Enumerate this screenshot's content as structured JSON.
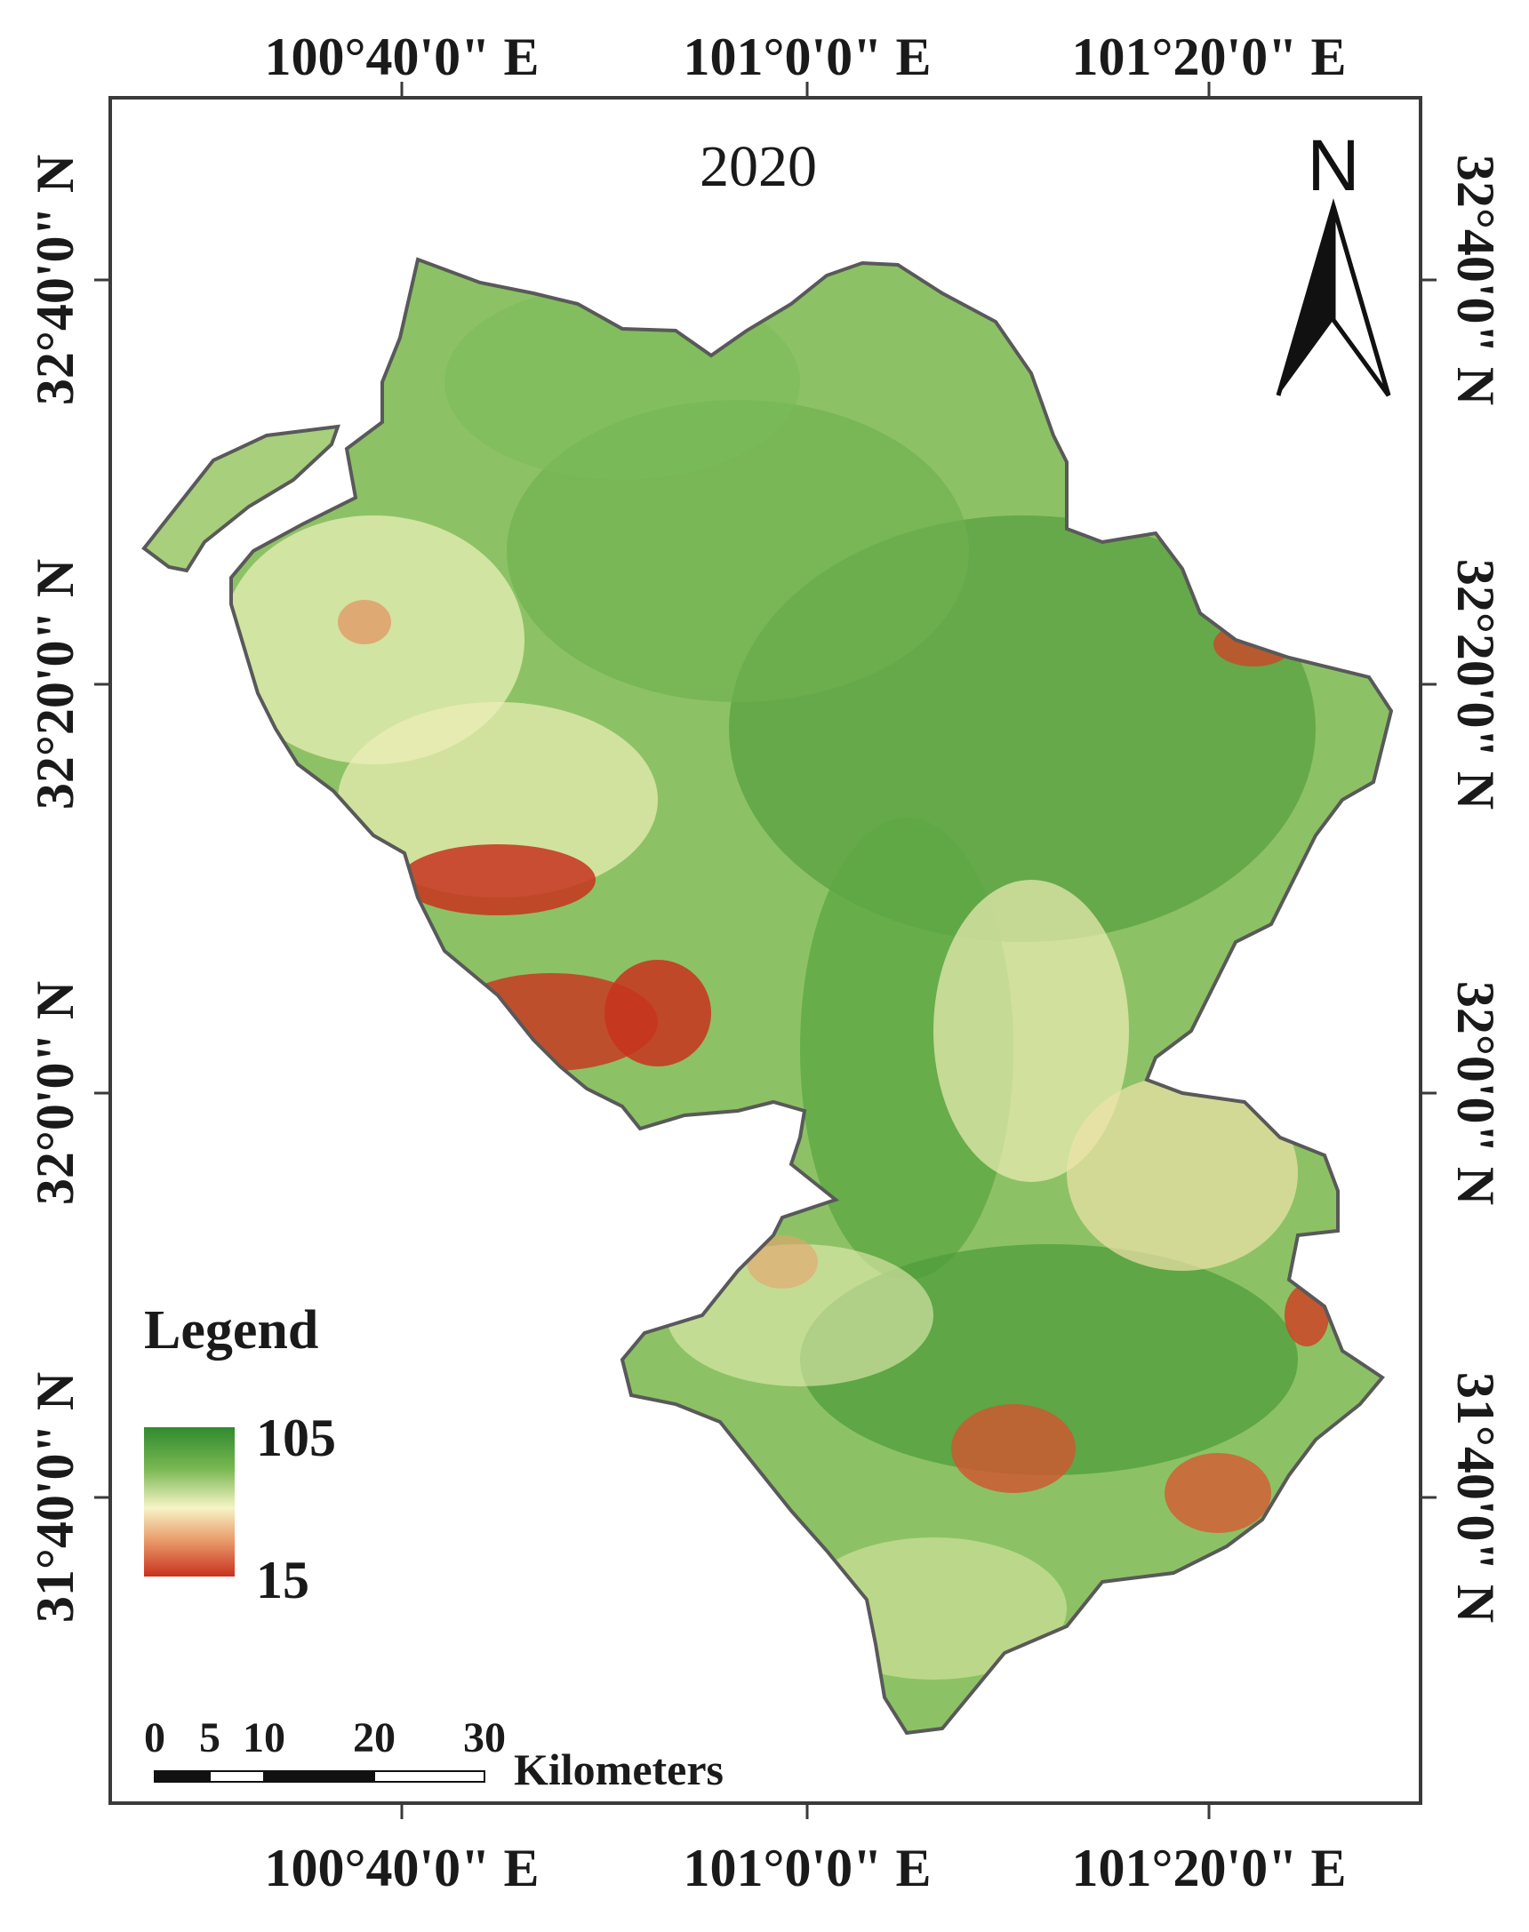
{
  "map": {
    "title": "2020",
    "north_label": "N",
    "coordinates": {
      "top": [
        "100°40'0\" E",
        "101°0'0\" E",
        "101°20'0\" E"
      ],
      "bottom": [
        "100°40'0\" E",
        "101°0'0\" E",
        "101°20'0\" E"
      ],
      "left": [
        "32°40'0\" N",
        "32°20'0\" N",
        "32°0'0\" N",
        "31°40'0\" N"
      ],
      "right": [
        "32°40'0\" N",
        "32°20'0\" N",
        "32°0'0\" N",
        "31°40'0\" N"
      ]
    },
    "legend": {
      "title": "Legend",
      "max_label": "105",
      "min_label": "15",
      "colors": {
        "high": "#2f8a2f",
        "mid": "#f6f4c6",
        "low": "#c8321e"
      }
    },
    "scale_bar": {
      "ticks": [
        "0",
        "5",
        "10",
        "20",
        "30"
      ],
      "unit": "Kilometers"
    }
  }
}
